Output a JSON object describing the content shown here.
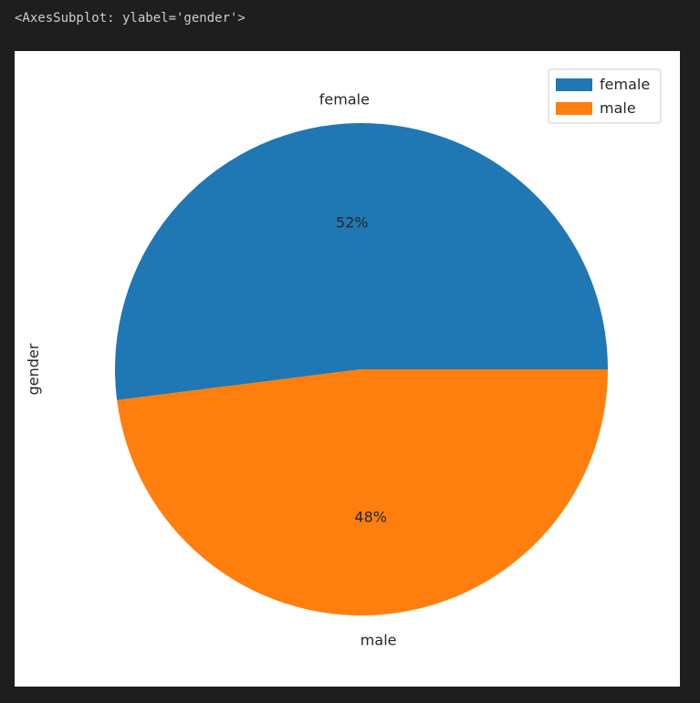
{
  "output": {
    "repr_text": "<AxesSubplot: ylabel='gender'>"
  },
  "colors": {
    "page_background": "#1e1e1e",
    "figure_background": "#ffffff"
  },
  "chart_data": {
    "type": "pie",
    "ylabel": "gender",
    "categories": [
      "female",
      "male"
    ],
    "values": [
      52,
      48
    ],
    "value_labels": [
      "52%",
      "48%"
    ],
    "colors": [
      "#1f77b4",
      "#ff7f0e"
    ],
    "start_angle_deg": 0,
    "direction": "counterclockwise",
    "legend": {
      "position": "upper right",
      "entries": [
        "female",
        "male"
      ]
    }
  }
}
